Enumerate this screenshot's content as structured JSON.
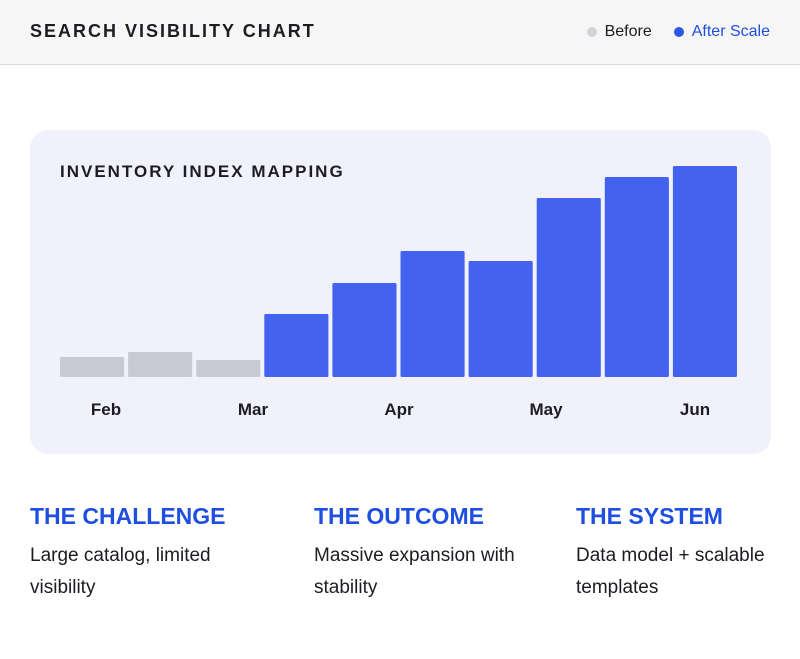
{
  "header": {
    "title": "SEARCH VISIBILITY CHART",
    "legend": [
      {
        "label": "Before",
        "color": "#d2d2d8",
        "text_color": "#1c1c22"
      },
      {
        "label": "After Scale",
        "color": "#2d58e6",
        "text_color": "#1f4fe0"
      }
    ]
  },
  "chart_data": {
    "type": "bar",
    "title": "INVENTORY INDEX MAPPING",
    "values": [
      20,
      25,
      17,
      63,
      94,
      126,
      116,
      179,
      200,
      211
    ],
    "series_of_bar": [
      "Before",
      "Before",
      "Before",
      "After Scale",
      "After Scale",
      "After Scale",
      "After Scale",
      "After Scale",
      "After Scale",
      "After Scale"
    ],
    "x_tick_labels": [
      "Feb",
      "Mar",
      "Apr",
      "May",
      "Jun"
    ],
    "ylim": [
      0,
      220
    ],
    "grid": false,
    "legend_position": "top-right",
    "colors": {
      "Before": "#c9c9d3",
      "After Scale": "#4362ef"
    }
  },
  "columns": [
    {
      "heading": "THE CHALLENGE",
      "text": "Large catalog, limited visibility"
    },
    {
      "heading": "THE OUTCOME",
      "text": "Massive expansion with stability"
    },
    {
      "heading": "THE SYSTEM",
      "text": "Data model + scalable templates"
    }
  ]
}
